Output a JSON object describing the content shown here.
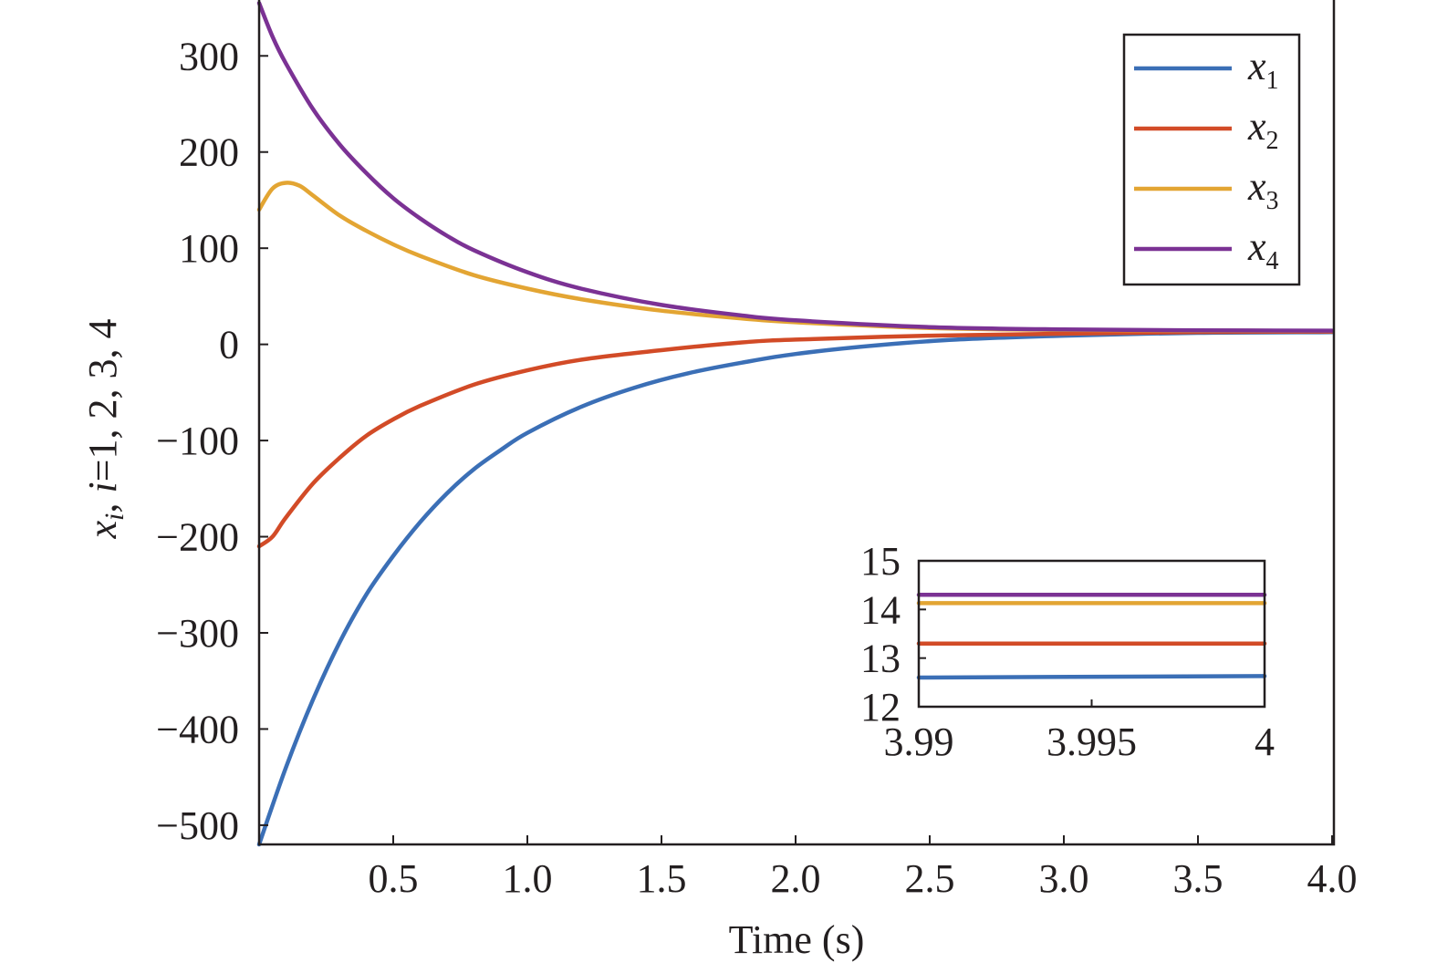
{
  "chart_data": {
    "type": "line",
    "xlabel": "Time (s)",
    "ylabel": "x_i, i=1, 2, 3, 4",
    "xlim": [
      0,
      4.0
    ],
    "ylim": [
      -520,
      360
    ],
    "x_ticks": [
      0.5,
      1.0,
      1.5,
      2.0,
      2.5,
      3.0,
      3.5,
      4.0
    ],
    "x_tick_labels": [
      "0.5",
      "1.0",
      "1.5",
      "2.0",
      "2.5",
      "3.0",
      "3.5",
      "4.0"
    ],
    "y_ticks": [
      300,
      200,
      100,
      0,
      -100,
      -200,
      -300,
      -400,
      -500
    ],
    "y_tick_labels": [
      "300",
      "200",
      "100",
      "0",
      "−100",
      "−200",
      "−300",
      "−400",
      "−500"
    ],
    "grid": false,
    "legend_position": "top-right",
    "series": [
      {
        "name": "x1",
        "label_base": "x",
        "label_sub": "1",
        "color": "#3b6fb6",
        "x": [
          0,
          0.1,
          0.2,
          0.3,
          0.4,
          0.5,
          0.6,
          0.7,
          0.8,
          0.9,
          1.0,
          1.2,
          1.4,
          1.6,
          1.8,
          2.0,
          2.3,
          2.6,
          3.0,
          3.5,
          4.0
        ],
        "y": [
          -520,
          -440,
          -370,
          -310,
          -260,
          -220,
          -185,
          -155,
          -130,
          -110,
          -92,
          -65,
          -45,
          -30,
          -19,
          -10,
          -1,
          5,
          9,
          12,
          12.6
        ]
      },
      {
        "name": "x2",
        "label_base": "x",
        "label_sub": "2",
        "color": "#d24b27",
        "x": [
          0,
          0.05,
          0.1,
          0.2,
          0.3,
          0.4,
          0.5,
          0.6,
          0.8,
          1.0,
          1.2,
          1.5,
          1.8,
          2.0,
          2.5,
          3.0,
          3.5,
          4.0
        ],
        "y": [
          -210,
          -200,
          -180,
          -145,
          -118,
          -95,
          -78,
          -64,
          -42,
          -27,
          -16,
          -6,
          2,
          5,
          9,
          11,
          12.8,
          13.3
        ]
      },
      {
        "name": "x3",
        "label_base": "x",
        "label_sub": "3",
        "color": "#e3a533",
        "x": [
          0,
          0.05,
          0.1,
          0.15,
          0.2,
          0.3,
          0.4,
          0.5,
          0.6,
          0.8,
          1.0,
          1.2,
          1.5,
          1.8,
          2.0,
          2.5,
          3.0,
          3.5,
          4.0
        ],
        "y": [
          140,
          162,
          168,
          165,
          155,
          134,
          118,
          104,
          92,
          72,
          58,
          47,
          35,
          27,
          23,
          17,
          15,
          14.3,
          14.1
        ]
      },
      {
        "name": "x4",
        "label_base": "x",
        "label_sub": "4",
        "color": "#7b3294",
        "x": [
          0,
          0.05,
          0.1,
          0.2,
          0.3,
          0.4,
          0.5,
          0.6,
          0.7,
          0.8,
          1.0,
          1.2,
          1.5,
          1.8,
          2.0,
          2.5,
          3.0,
          3.5,
          4.0
        ],
        "y": [
          355,
          320,
          292,
          245,
          208,
          178,
          152,
          131,
          113,
          98,
          75,
          58,
          41,
          30,
          25,
          18,
          15.5,
          14.6,
          14.3
        ]
      }
    ],
    "inset": {
      "xlim": [
        3.99,
        4.0
      ],
      "ylim": [
        12,
        15
      ],
      "x_ticks": [
        3.99,
        3.995,
        4.0
      ],
      "x_tick_labels": [
        "3.99",
        "3.995",
        "4"
      ],
      "y_ticks": [
        15,
        14,
        13,
        12
      ],
      "y_tick_labels": [
        "15",
        "14",
        "13",
        "12"
      ],
      "series": [
        {
          "name": "x1",
          "color": "#3b6fb6",
          "x": [
            3.99,
            4.0
          ],
          "y": [
            12.6,
            12.63
          ]
        },
        {
          "name": "x2",
          "color": "#d24b27",
          "x": [
            3.99,
            4.0
          ],
          "y": [
            13.3,
            13.3
          ]
        },
        {
          "name": "x3",
          "color": "#e3a533",
          "x": [
            3.99,
            4.0
          ],
          "y": [
            14.13,
            14.13
          ]
        },
        {
          "name": "x4",
          "color": "#7b3294",
          "x": [
            3.99,
            4.0
          ],
          "y": [
            14.3,
            14.3
          ]
        }
      ]
    }
  }
}
